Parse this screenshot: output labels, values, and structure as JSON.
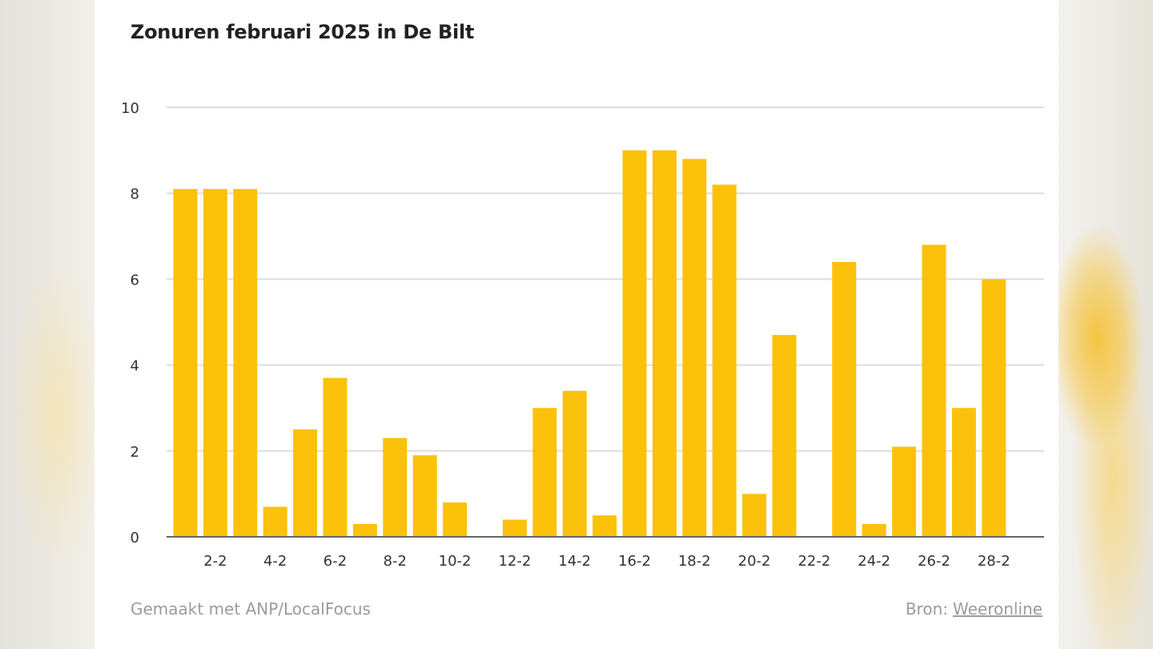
{
  "chart_data": {
    "type": "bar",
    "title": "Zonuren februari 2025 in De Bilt",
    "xlabel": "",
    "ylabel": "",
    "ylim": [
      0,
      10
    ],
    "yticks": [
      0,
      2,
      4,
      6,
      8,
      10
    ],
    "grid": true,
    "bar_color": "#fcc10a",
    "categories": [
      "1-2",
      "2-2",
      "3-2",
      "4-2",
      "5-2",
      "6-2",
      "7-2",
      "8-2",
      "9-2",
      "10-2",
      "11-2",
      "12-2",
      "13-2",
      "14-2",
      "15-2",
      "16-2",
      "17-2",
      "18-2",
      "19-2",
      "20-2",
      "21-2",
      "22-2",
      "23-2",
      "24-2",
      "25-2",
      "26-2",
      "27-2",
      "28-2"
    ],
    "xtick_labels": [
      "2-2",
      "4-2",
      "6-2",
      "8-2",
      "10-2",
      "12-2",
      "14-2",
      "16-2",
      "18-2",
      "20-2",
      "22-2",
      "24-2",
      "26-2",
      "28-2"
    ],
    "values": [
      8.1,
      8.1,
      8.1,
      0.7,
      2.5,
      3.7,
      0.3,
      2.3,
      1.9,
      0.8,
      0,
      0.4,
      3.0,
      3.4,
      0.5,
      9.0,
      9.0,
      8.8,
      8.2,
      1.0,
      4.7,
      0,
      6.4,
      0.3,
      2.1,
      6.8,
      3.0,
      6.0
    ]
  },
  "footer": {
    "credit": "Gemaakt met ANP/LocalFocus",
    "source_label": "Bron:",
    "source_link": "Weeronline"
  }
}
